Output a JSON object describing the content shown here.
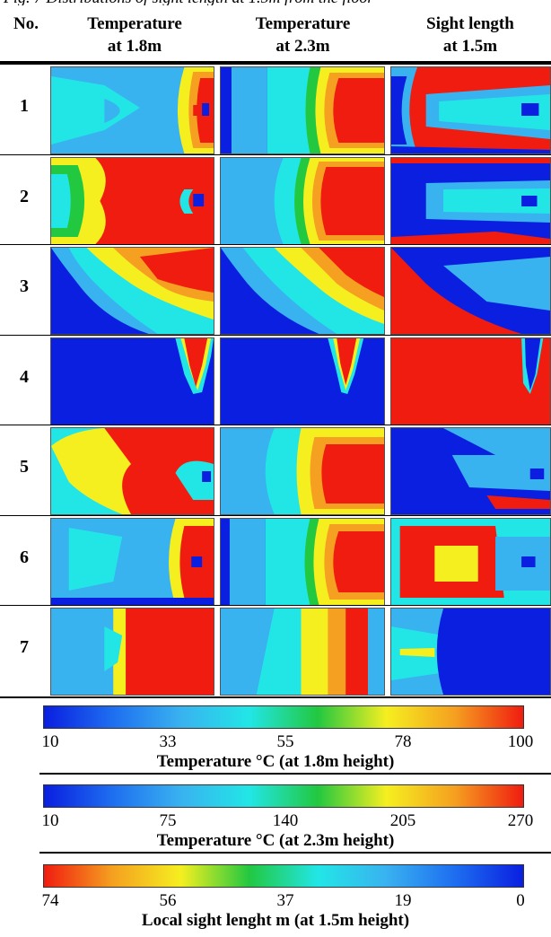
{
  "columns": {
    "no": "No.",
    "col1": [
      "Temperature",
      "at 1.8m"
    ],
    "col2": [
      "Temperature",
      "at 2.3m"
    ],
    "col3": [
      "Sight length",
      "at 1.5m"
    ]
  },
  "rows": [
    "1",
    "2",
    "3",
    "4",
    "5",
    "6",
    "7"
  ],
  "scales": [
    {
      "ticks": [
        "10",
        "33",
        "55",
        "78",
        "100"
      ],
      "title": "Temperature °C  (at 1.8m height)",
      "direction": "blue-to-red"
    },
    {
      "ticks": [
        "10",
        "75",
        "140",
        "205",
        "270"
      ],
      "title": "Temperature °C (at 2.3m height)",
      "direction": "blue-to-red"
    },
    {
      "ticks": [
        "74",
        "56",
        "37",
        "19",
        "0"
      ],
      "title": "Local sight lenght m (at 1.5m height)",
      "direction": "red-to-blue"
    }
  ],
  "colors": {
    "blue": "#0a1fe0",
    "light_blue": "#39b2f0",
    "cyan": "#22e6e6",
    "green": "#22c840",
    "yellow": "#f5ef20",
    "orange": "#f5a020",
    "red": "#f01c10"
  }
}
